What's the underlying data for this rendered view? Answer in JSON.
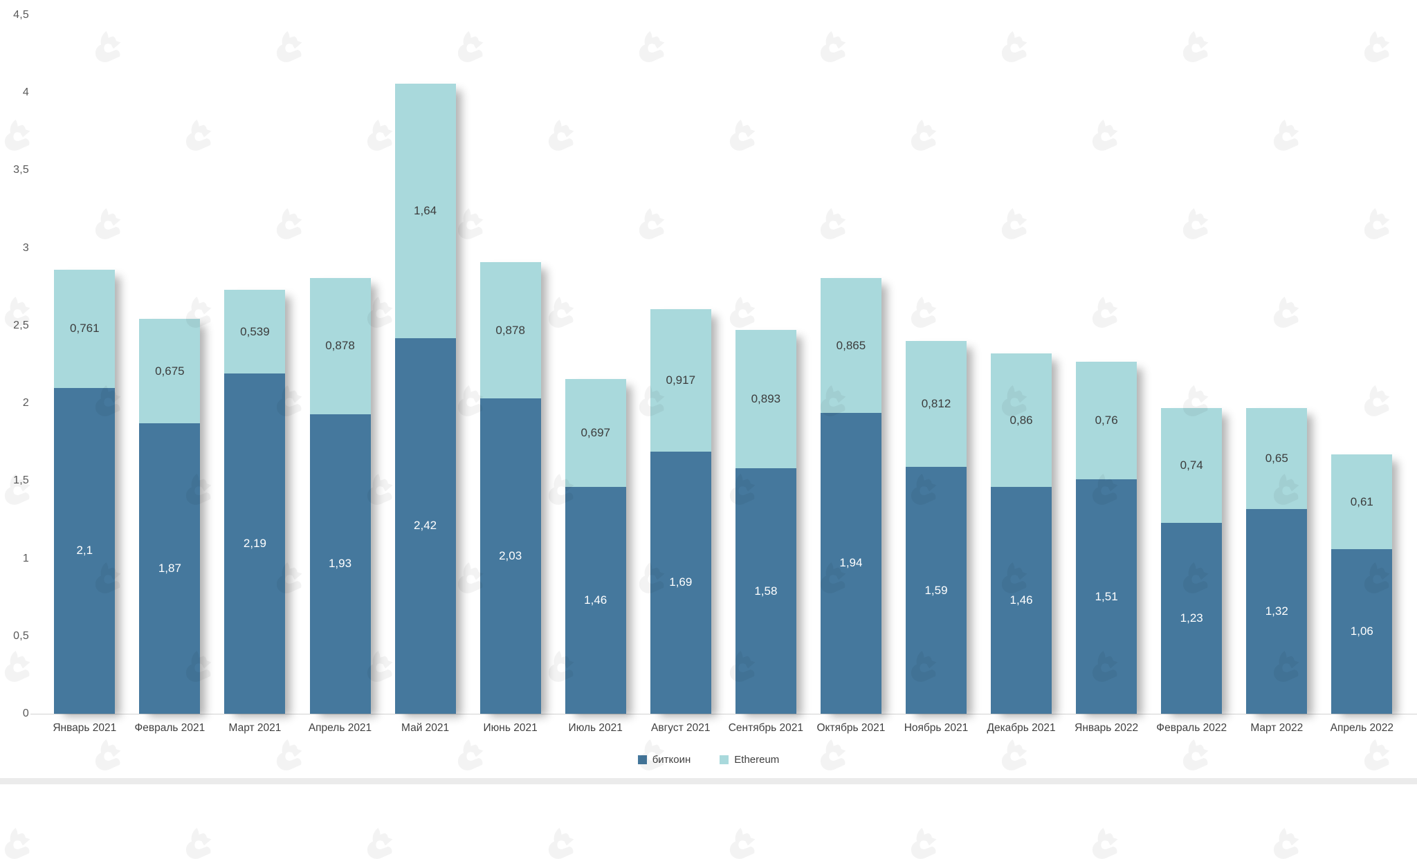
{
  "chart_data": {
    "type": "bar",
    "stacked": true,
    "title": "",
    "xlabel": "",
    "ylabel": "",
    "categories": [
      "Январь 2021",
      "Февраль 2021",
      "Март 2021",
      "Апрель 2021",
      "Май 2021",
      "Июнь 2021",
      "Июль 2021",
      "Август 2021",
      "Сентябрь 2021",
      "Октябрь 2021",
      "Ноябрь 2021",
      "Декабрь 2021",
      "Январь 2022",
      "Февраль 2022",
      "Март 2022",
      "Апрель 2022"
    ],
    "series": [
      {
        "name": "биткоин",
        "color": "#45789D",
        "label_color": "#FFFFFF",
        "values": [
          2.1,
          1.87,
          2.19,
          1.93,
          2.42,
          2.03,
          1.46,
          1.69,
          1.58,
          1.94,
          1.59,
          1.46,
          1.51,
          1.23,
          1.32,
          1.06
        ],
        "labels": [
          "2,1",
          "1,87",
          "2,19",
          "1,93",
          "2,42",
          "2,03",
          "1,46",
          "1,69",
          "1,58",
          "1,94",
          "1,59",
          "1,46",
          "1,51",
          "1,23",
          "1,32",
          "1,06"
        ]
      },
      {
        "name": "Ethereum",
        "color": "#A9D9DC",
        "label_color": "#3C3C3C",
        "values": [
          0.761,
          0.675,
          0.539,
          0.878,
          1.64,
          0.878,
          0.697,
          0.917,
          0.893,
          0.865,
          0.812,
          0.86,
          0.76,
          0.74,
          0.65,
          0.61
        ],
        "labels": [
          "0,761",
          "0,675",
          "0,539",
          "0,878",
          "1,64",
          "0,878",
          "0,697",
          "0,917",
          "0,893",
          "0,865",
          "0,812",
          "0,86",
          "0,76",
          "0,74",
          "0,65",
          "0,61"
        ]
      }
    ],
    "ylim": [
      0,
      4.5
    ],
    "y_ticks": [
      {
        "value": 0,
        "label": "0"
      },
      {
        "value": 0.5,
        "label": "0,5"
      },
      {
        "value": 1,
        "label": "1"
      },
      {
        "value": 1.5,
        "label": "1,5"
      },
      {
        "value": 2,
        "label": "2"
      },
      {
        "value": 2.5,
        "label": "2,5"
      },
      {
        "value": 3,
        "label": "3"
      },
      {
        "value": 3.5,
        "label": "3,5"
      },
      {
        "value": 4,
        "label": "4"
      },
      {
        "value": 4.5,
        "label": "4,5"
      }
    ],
    "grid": false,
    "legend_position": "bottom"
  },
  "legend": {
    "items": [
      {
        "label": "биткоин",
        "color": "#45789D"
      },
      {
        "label": "Ethereum",
        "color": "#A9D9DC"
      }
    ]
  },
  "decor": {
    "axis_line_color": "#d2d2d2",
    "bottom_strip_color": "#ebebeb",
    "watermark_icon": "forklog-hand-logo"
  }
}
